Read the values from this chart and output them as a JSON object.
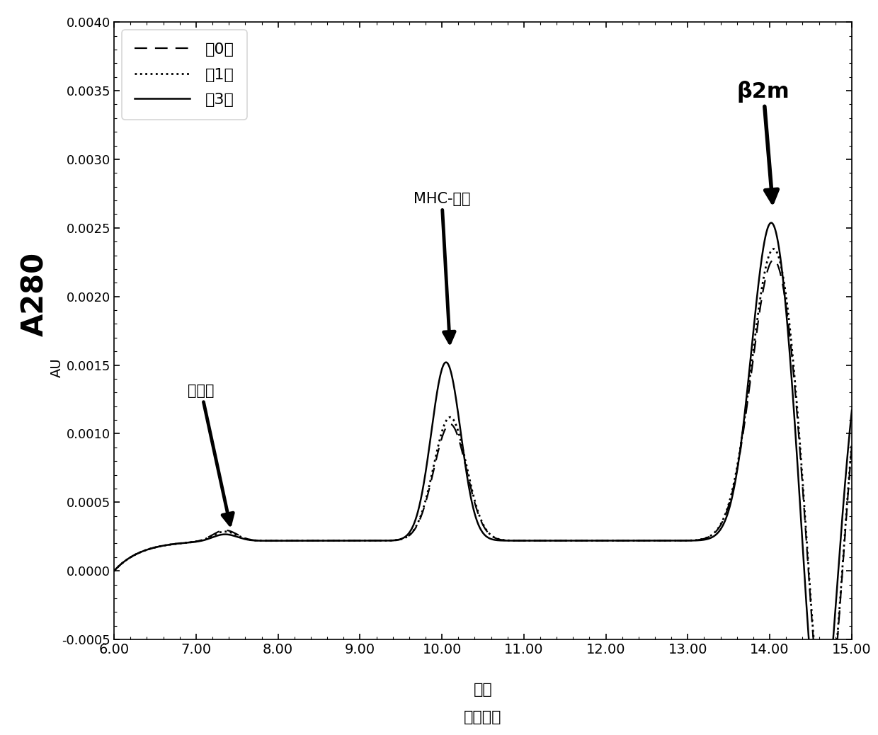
{
  "title": "",
  "xlabel": "分钟",
  "xlabel2": "洗脱时间",
  "ylabel_main": "A280",
  "ylabel_sub": "AU",
  "xlim": [
    6.0,
    15.0
  ],
  "ylim": [
    -0.0005,
    0.004
  ],
  "xticks": [
    6.0,
    7.0,
    8.0,
    9.0,
    10.0,
    11.0,
    12.0,
    13.0,
    14.0,
    15.0
  ],
  "xtick_labels": [
    "6.00",
    "7.00",
    "8.00",
    "9.00",
    "10.00",
    "11.00",
    "12.00",
    "13.00",
    "14.00",
    "15.00"
  ],
  "yticks": [
    -0.0005,
    0.0,
    0.0005,
    0.001,
    0.0015,
    0.002,
    0.0025,
    0.003,
    0.0035,
    0.004
  ],
  "legend_labels": [
    "第0天",
    "第1天",
    "第3天"
  ],
  "line_color": "#000000",
  "background_color": "#ffffff",
  "ann1_label": "凝聚体",
  "ann2_label": "MHC-单体",
  "ann3_label": "β2m",
  "figsize": [
    12.4,
    10.38
  ],
  "dpi": 100
}
